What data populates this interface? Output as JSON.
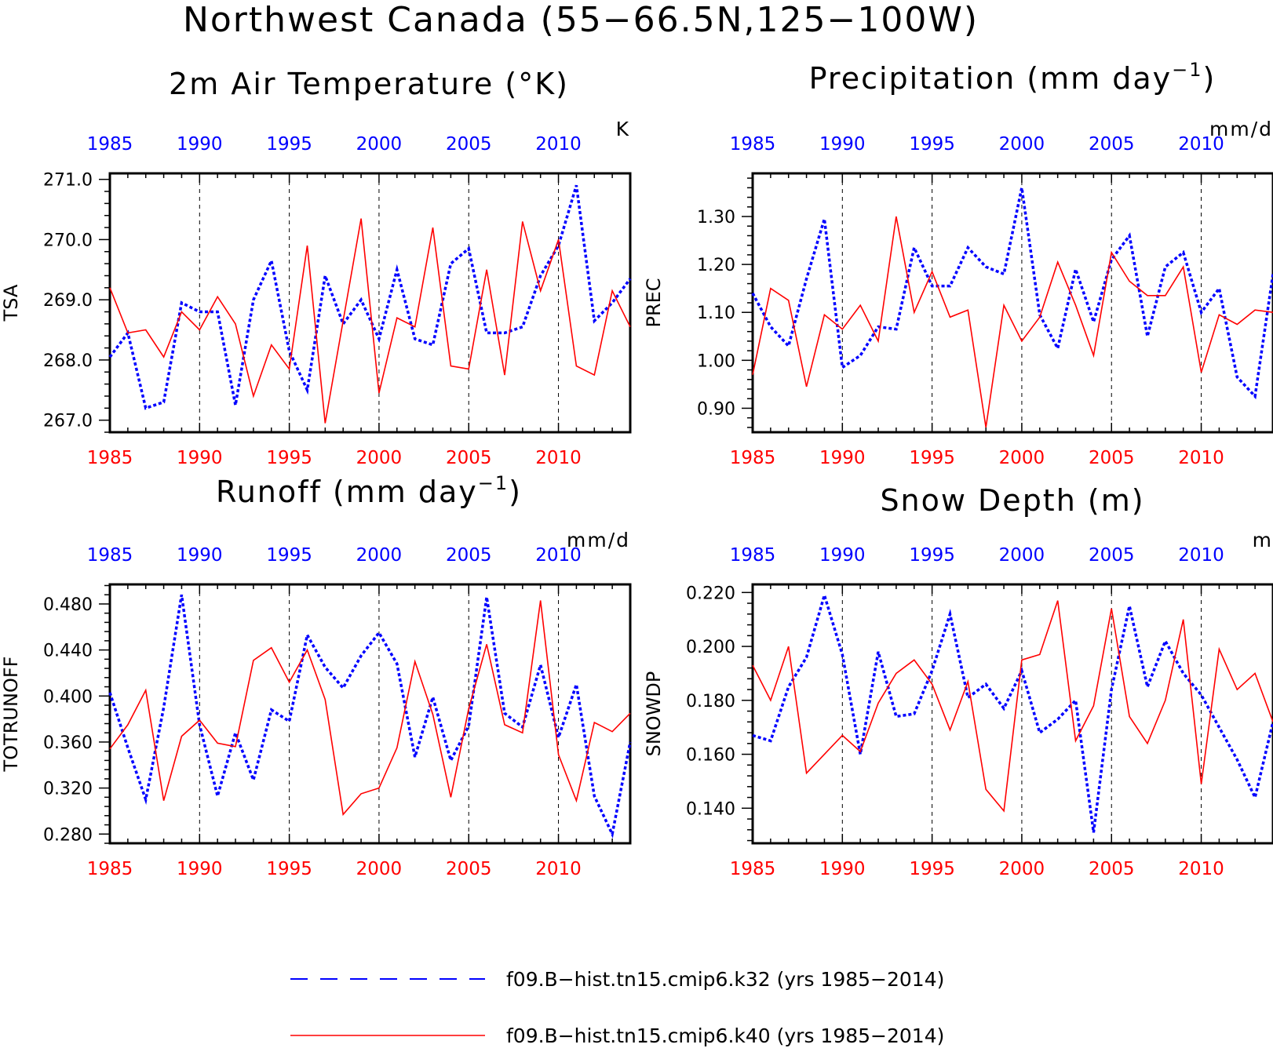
{
  "title": "Northwest Canada (55−66.5N,125−100W)",
  "colors": {
    "k32": "#0000ff",
    "k40": "#ff0000",
    "axis": "#000000"
  },
  "legend": [
    {
      "label": "f09.B−hist.tn15.cmip6.k32 (yrs 1985−2014)",
      "color": "#0000ff",
      "style": "dashed"
    },
    {
      "label": "f09.B−hist.tn15.cmip6.k40 (yrs 1985−2014)",
      "color": "#ff0000",
      "style": "solid"
    }
  ],
  "chart_data": [
    {
      "type": "line",
      "title": "2m Air Temperature (°K)",
      "ylabel": "TSA",
      "units": "K",
      "ylim": [
        266.8,
        271.1
      ],
      "yticks": [
        267.0,
        268.0,
        269.0,
        270.0,
        271.0
      ],
      "ytick_labels": [
        "267.0",
        "268.0",
        "269.0",
        "270.0",
        "271.0"
      ],
      "xlim": [
        1985,
        2014
      ],
      "xticks": [
        1985,
        1990,
        1995,
        2000,
        2005,
        2010
      ],
      "x": [
        1985,
        1986,
        1987,
        1988,
        1989,
        1990,
        1991,
        1992,
        1993,
        1994,
        1995,
        1996,
        1997,
        1998,
        1999,
        2000,
        2001,
        2002,
        2003,
        2004,
        2005,
        2006,
        2007,
        2008,
        2009,
        2010,
        2011,
        2012,
        2013,
        2014
      ],
      "series": [
        {
          "name": "f09.B−hist.tn15.cmip6.k32",
          "color": "#0000ff",
          "style": "dashed",
          "values": [
            268.05,
            268.45,
            267.2,
            267.3,
            268.95,
            268.8,
            268.8,
            267.25,
            269.0,
            269.65,
            268.15,
            267.5,
            269.4,
            268.6,
            269.0,
            268.35,
            269.5,
            268.35,
            268.25,
            269.6,
            269.85,
            268.45,
            268.45,
            268.55,
            269.4,
            269.9,
            270.9,
            268.65,
            268.95,
            269.35
          ]
        },
        {
          "name": "f09.B−hist.tn15.cmip6.k40",
          "color": "#ff0000",
          "style": "solid",
          "values": [
            269.2,
            268.45,
            268.5,
            268.05,
            268.8,
            268.5,
            269.05,
            268.6,
            267.4,
            268.25,
            267.85,
            269.9,
            266.95,
            268.65,
            270.35,
            267.45,
            268.7,
            268.55,
            270.2,
            267.9,
            267.85,
            269.5,
            267.75,
            270.3,
            269.15,
            270.0,
            267.9,
            267.75,
            269.15,
            268.55
          ]
        }
      ]
    },
    {
      "type": "line",
      "title": "Precipitation (mm day",
      "title_sup": "−1",
      "title_end": ")",
      "ylabel": "PREC",
      "units": "mm/d",
      "ylim": [
        0.85,
        1.39
      ],
      "yticks": [
        0.9,
        1.0,
        1.1,
        1.2,
        1.3
      ],
      "ytick_labels": [
        "0.90",
        "1.00",
        "1.10",
        "1.20",
        "1.30"
      ],
      "xlim": [
        1985,
        2014
      ],
      "xticks": [
        1985,
        1990,
        1995,
        2000,
        2005,
        2010
      ],
      "x": [
        1985,
        1986,
        1987,
        1988,
        1989,
        1990,
        1991,
        1992,
        1993,
        1994,
        1995,
        1996,
        1997,
        1998,
        1999,
        2000,
        2001,
        2002,
        2003,
        2004,
        2005,
        2006,
        2007,
        2008,
        2009,
        2010,
        2011,
        2012,
        2013,
        2014
      ],
      "series": [
        {
          "name": "f09.B−hist.tn15.cmip6.k32",
          "color": "#0000ff",
          "style": "dashed",
          "values": [
            1.14,
            1.07,
            1.03,
            1.17,
            1.295,
            0.985,
            1.01,
            1.07,
            1.065,
            1.235,
            1.155,
            1.155,
            1.235,
            1.195,
            1.18,
            1.36,
            1.095,
            1.025,
            1.19,
            1.08,
            1.21,
            1.26,
            1.05,
            1.195,
            1.225,
            1.1,
            1.15,
            0.965,
            0.925,
            1.18
          ]
        },
        {
          "name": "f09.B−hist.tn15.cmip6.k40",
          "color": "#ff0000",
          "style": "solid",
          "values": [
            0.97,
            1.15,
            1.125,
            0.945,
            1.095,
            1.065,
            1.115,
            1.04,
            1.3,
            1.1,
            1.185,
            1.09,
            1.105,
            0.86,
            1.115,
            1.04,
            1.09,
            1.205,
            1.115,
            1.01,
            1.225,
            1.165,
            1.135,
            1.135,
            1.195,
            0.975,
            1.095,
            1.075,
            1.105,
            1.1
          ]
        }
      ]
    },
    {
      "type": "line",
      "title": "Runoff (mm day",
      "title_sup": "−1",
      "title_end": ")",
      "ylabel": "TOTRUNOFF",
      "units": "mm/d",
      "ylim": [
        0.272,
        0.497
      ],
      "yticks": [
        0.28,
        0.32,
        0.36,
        0.4,
        0.44,
        0.48
      ],
      "ytick_labels": [
        "0.280",
        "0.320",
        "0.360",
        "0.400",
        "0.440",
        "0.480"
      ],
      "xlim": [
        1985,
        2014
      ],
      "xticks": [
        1985,
        1990,
        1995,
        2000,
        2005,
        2010
      ],
      "x": [
        1985,
        1986,
        1987,
        1988,
        1989,
        1990,
        1991,
        1992,
        1993,
        1994,
        1995,
        1996,
        1997,
        1998,
        1999,
        2000,
        2001,
        2002,
        2003,
        2004,
        2005,
        2006,
        2007,
        2008,
        2009,
        2010,
        2011,
        2012,
        2013,
        2014
      ],
      "series": [
        {
          "name": "f09.B−hist.tn15.cmip6.k32",
          "color": "#0000ff",
          "style": "dashed",
          "values": [
            0.403,
            0.355,
            0.31,
            0.39,
            0.488,
            0.375,
            0.313,
            0.368,
            0.327,
            0.388,
            0.378,
            0.453,
            0.425,
            0.407,
            0.435,
            0.455,
            0.428,
            0.347,
            0.399,
            0.344,
            0.374,
            0.486,
            0.385,
            0.373,
            0.427,
            0.364,
            0.41,
            0.313,
            0.28,
            0.36
          ]
        },
        {
          "name": "f09.B−hist.tn15.cmip6.k40",
          "color": "#ff0000",
          "style": "solid",
          "values": [
            0.354,
            0.375,
            0.405,
            0.309,
            0.365,
            0.379,
            0.359,
            0.356,
            0.431,
            0.442,
            0.412,
            0.44,
            0.397,
            0.297,
            0.315,
            0.32,
            0.355,
            0.43,
            0.384,
            0.312,
            0.389,
            0.445,
            0.375,
            0.368,
            0.483,
            0.349,
            0.309,
            0.377,
            0.369,
            0.385
          ]
        }
      ]
    },
    {
      "type": "line",
      "title": "Snow Depth (m)",
      "ylabel": "SNOWDP",
      "units": "m",
      "ylim": [
        0.127,
        0.223
      ],
      "yticks": [
        0.14,
        0.16,
        0.18,
        0.2,
        0.22
      ],
      "ytick_labels": [
        "0.140",
        "0.160",
        "0.180",
        "0.200",
        "0.220"
      ],
      "xlim": [
        1985,
        2014
      ],
      "xticks": [
        1985,
        1990,
        1995,
        2000,
        2005,
        2010
      ],
      "x": [
        1985,
        1986,
        1987,
        1988,
        1989,
        1990,
        1991,
        1992,
        1993,
        1994,
        1995,
        1996,
        1997,
        1998,
        1999,
        2000,
        2001,
        2002,
        2003,
        2004,
        2005,
        2006,
        2007,
        2008,
        2009,
        2010,
        2011,
        2012,
        2013,
        2014
      ],
      "series": [
        {
          "name": "f09.B−hist.tn15.cmip6.k32",
          "color": "#0000ff",
          "style": "dashed",
          "values": [
            0.167,
            0.165,
            0.185,
            0.196,
            0.219,
            0.197,
            0.16,
            0.198,
            0.174,
            0.175,
            0.191,
            0.212,
            0.181,
            0.186,
            0.177,
            0.191,
            0.168,
            0.173,
            0.18,
            0.131,
            0.184,
            0.215,
            0.185,
            0.202,
            0.19,
            0.182,
            0.17,
            0.158,
            0.144,
            0.172
          ]
        },
        {
          "name": "f09.B−hist.tn15.cmip6.k40",
          "color": "#ff0000",
          "style": "solid",
          "values": [
            0.193,
            0.18,
            0.2,
            0.153,
            0.16,
            0.167,
            0.161,
            0.179,
            0.19,
            0.195,
            0.186,
            0.169,
            0.187,
            0.147,
            0.139,
            0.195,
            0.197,
            0.217,
            0.165,
            0.178,
            0.214,
            0.174,
            0.164,
            0.18,
            0.21,
            0.149,
            0.199,
            0.184,
            0.19,
            0.172
          ]
        }
      ]
    }
  ]
}
